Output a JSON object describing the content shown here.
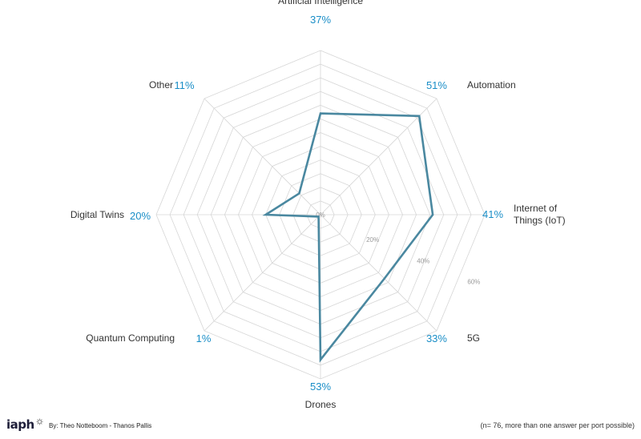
{
  "chart_data": {
    "type": "radar",
    "categories": [
      "Artificial Intelligence",
      "Automation",
      "Internet of\nThings (IoT)",
      "5G",
      "Drones",
      "Quantum Computing",
      "Digital Twins",
      "Other"
    ],
    "values": [
      37,
      51,
      41,
      33,
      53,
      1,
      20,
      11
    ],
    "value_labels": [
      "37%",
      "51%",
      "41%",
      "33%",
      "53%",
      "1%",
      "20%",
      "11%"
    ],
    "rlim": [
      0,
      60
    ],
    "r_ticks": [
      "0%",
      "20%",
      "40%",
      "60%"
    ],
    "grid": true,
    "colors": {
      "series": "#4a88a0",
      "value_label": "#1a8ec7",
      "grid": "#d6d6d6",
      "category_label": "#333333"
    }
  },
  "footer": {
    "logo": "iaph",
    "credit": "By: Theo Notteboom - Thanos Pallis",
    "note": "(n= 76, more than one answer per port possible)"
  }
}
